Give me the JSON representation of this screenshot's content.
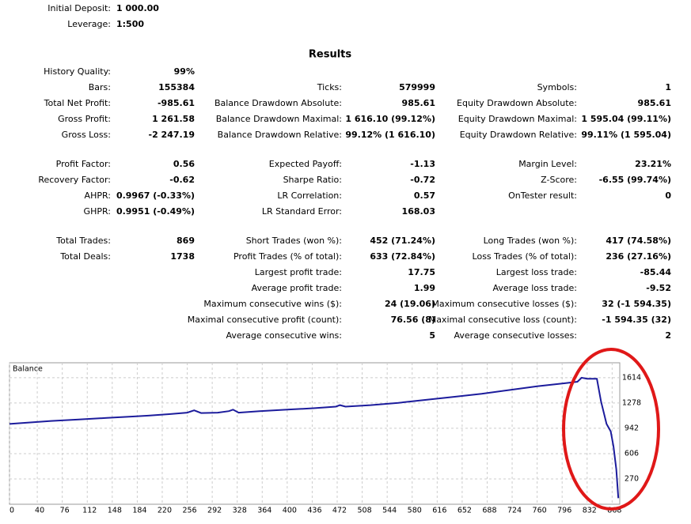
{
  "header": {
    "rows": [
      {
        "label": "Initial Deposit:",
        "value": "1 000.00"
      },
      {
        "label": "Leverage:",
        "value": "1:500"
      }
    ]
  },
  "title": "Results",
  "groups": [
    {
      "rows": [
        [
          {
            "label": "History Quality:",
            "value": "99%"
          },
          null,
          null
        ],
        [
          {
            "label": "Bars:",
            "value": "155384"
          },
          {
            "label": "Ticks:",
            "value": "579999"
          },
          {
            "label": "Symbols:",
            "value": "1"
          }
        ],
        [
          {
            "label": "Total Net Profit:",
            "value": "-985.61"
          },
          {
            "label": "Balance Drawdown Absolute:",
            "value": "985.61"
          },
          {
            "label": "Equity Drawdown Absolute:",
            "value": "985.61"
          }
        ],
        [
          {
            "label": "Gross Profit:",
            "value": "1 261.58"
          },
          {
            "label": "Balance Drawdown Maximal:",
            "value": "1 616.10 (99.12%)"
          },
          {
            "label": "Equity Drawdown Maximal:",
            "value": "1 595.04 (99.11%)"
          }
        ],
        [
          {
            "label": "Gross Loss:",
            "value": "-2 247.19"
          },
          {
            "label": "Balance Drawdown Relative:",
            "value": "99.12% (1 616.10)"
          },
          {
            "label": "Equity Drawdown Relative:",
            "value": "99.11% (1 595.04)"
          }
        ]
      ]
    },
    {
      "rows": [
        [
          {
            "label": "Profit Factor:",
            "value": "0.56"
          },
          {
            "label": "Expected Payoff:",
            "value": "-1.13"
          },
          {
            "label": "Margin Level:",
            "value": "23.21%"
          }
        ],
        [
          {
            "label": "Recovery Factor:",
            "value": "-0.62"
          },
          {
            "label": "Sharpe Ratio:",
            "value": "-0.72"
          },
          {
            "label": "Z-Score:",
            "value": "-6.55 (99.74%)"
          }
        ],
        [
          {
            "label": "AHPR:",
            "value": "0.9967 (-0.33%)"
          },
          {
            "label": "LR Correlation:",
            "value": "0.57"
          },
          {
            "label": "OnTester result:",
            "value": "0"
          }
        ],
        [
          {
            "label": "GHPR:",
            "value": "0.9951 (-0.49%)"
          },
          {
            "label": "LR Standard Error:",
            "value": "168.03"
          },
          null
        ]
      ]
    },
    {
      "rows": [
        [
          {
            "label": "Total Trades:",
            "value": "869"
          },
          {
            "label": "Short Trades (won %):",
            "value": "452 (71.24%)"
          },
          {
            "label": "Long Trades (won %):",
            "value": "417 (74.58%)"
          }
        ],
        [
          {
            "label": "Total Deals:",
            "value": "1738"
          },
          {
            "label": "Profit Trades (% of total):",
            "value": "633 (72.84%)"
          },
          {
            "label": "Loss Trades (% of total):",
            "value": "236 (27.16%)"
          }
        ],
        [
          null,
          {
            "label": "Largest profit trade:",
            "value": "17.75"
          },
          {
            "label": "Largest loss trade:",
            "value": "-85.44"
          }
        ],
        [
          null,
          {
            "label": "Average profit trade:",
            "value": "1.99"
          },
          {
            "label": "Average loss trade:",
            "value": "-9.52"
          }
        ],
        [
          null,
          {
            "label": "Maximum consecutive wins ($):",
            "value": "24 (19.06)"
          },
          {
            "label": "Maximum consecutive losses ($):",
            "value": "32 (-1 594.35)"
          }
        ],
        [
          null,
          {
            "label": "Maximal consecutive profit (count):",
            "value": "76.56 (8)"
          },
          {
            "label": "Maximal consecutive loss (count):",
            "value": "-1 594.35 (32)"
          }
        ],
        [
          null,
          {
            "label": "Average consecutive wins:",
            "value": "5"
          },
          {
            "label": "Average consecutive losses:",
            "value": "2"
          }
        ]
      ]
    }
  ],
  "chart": {
    "type": "line",
    "title": "Balance",
    "color": "#1c1c9c",
    "grid": true,
    "x": [
      0,
      30,
      60,
      100,
      140,
      180,
      200,
      230,
      256,
      266,
      276,
      300,
      316,
      322,
      330,
      360,
      400,
      440,
      470,
      476,
      484,
      520,
      560,
      600,
      640,
      680,
      720,
      760,
      800,
      818,
      824,
      832,
      846,
      852,
      860,
      866,
      870,
      874,
      877
    ],
    "values": [
      1000,
      1020,
      1040,
      1060,
      1080,
      1100,
      1110,
      1130,
      1150,
      1180,
      1145,
      1150,
      1170,
      1190,
      1150,
      1170,
      1190,
      1210,
      1230,
      1250,
      1230,
      1250,
      1280,
      1320,
      1360,
      1400,
      1450,
      1500,
      1540,
      1560,
      1614,
      1600,
      1600,
      1300,
      1000,
      900,
      700,
      400,
      14.39
    ],
    "xlim": [
      0,
      879
    ],
    "xticks": [
      0,
      40,
      76,
      112,
      148,
      184,
      220,
      256,
      292,
      328,
      364,
      400,
      436,
      472,
      508,
      544,
      580,
      616,
      652,
      688,
      724,
      760,
      796,
      832,
      868
    ],
    "ylim": [
      -66,
      1812
    ],
    "yticks": [
      270,
      606,
      942,
      1278,
      1614
    ]
  }
}
